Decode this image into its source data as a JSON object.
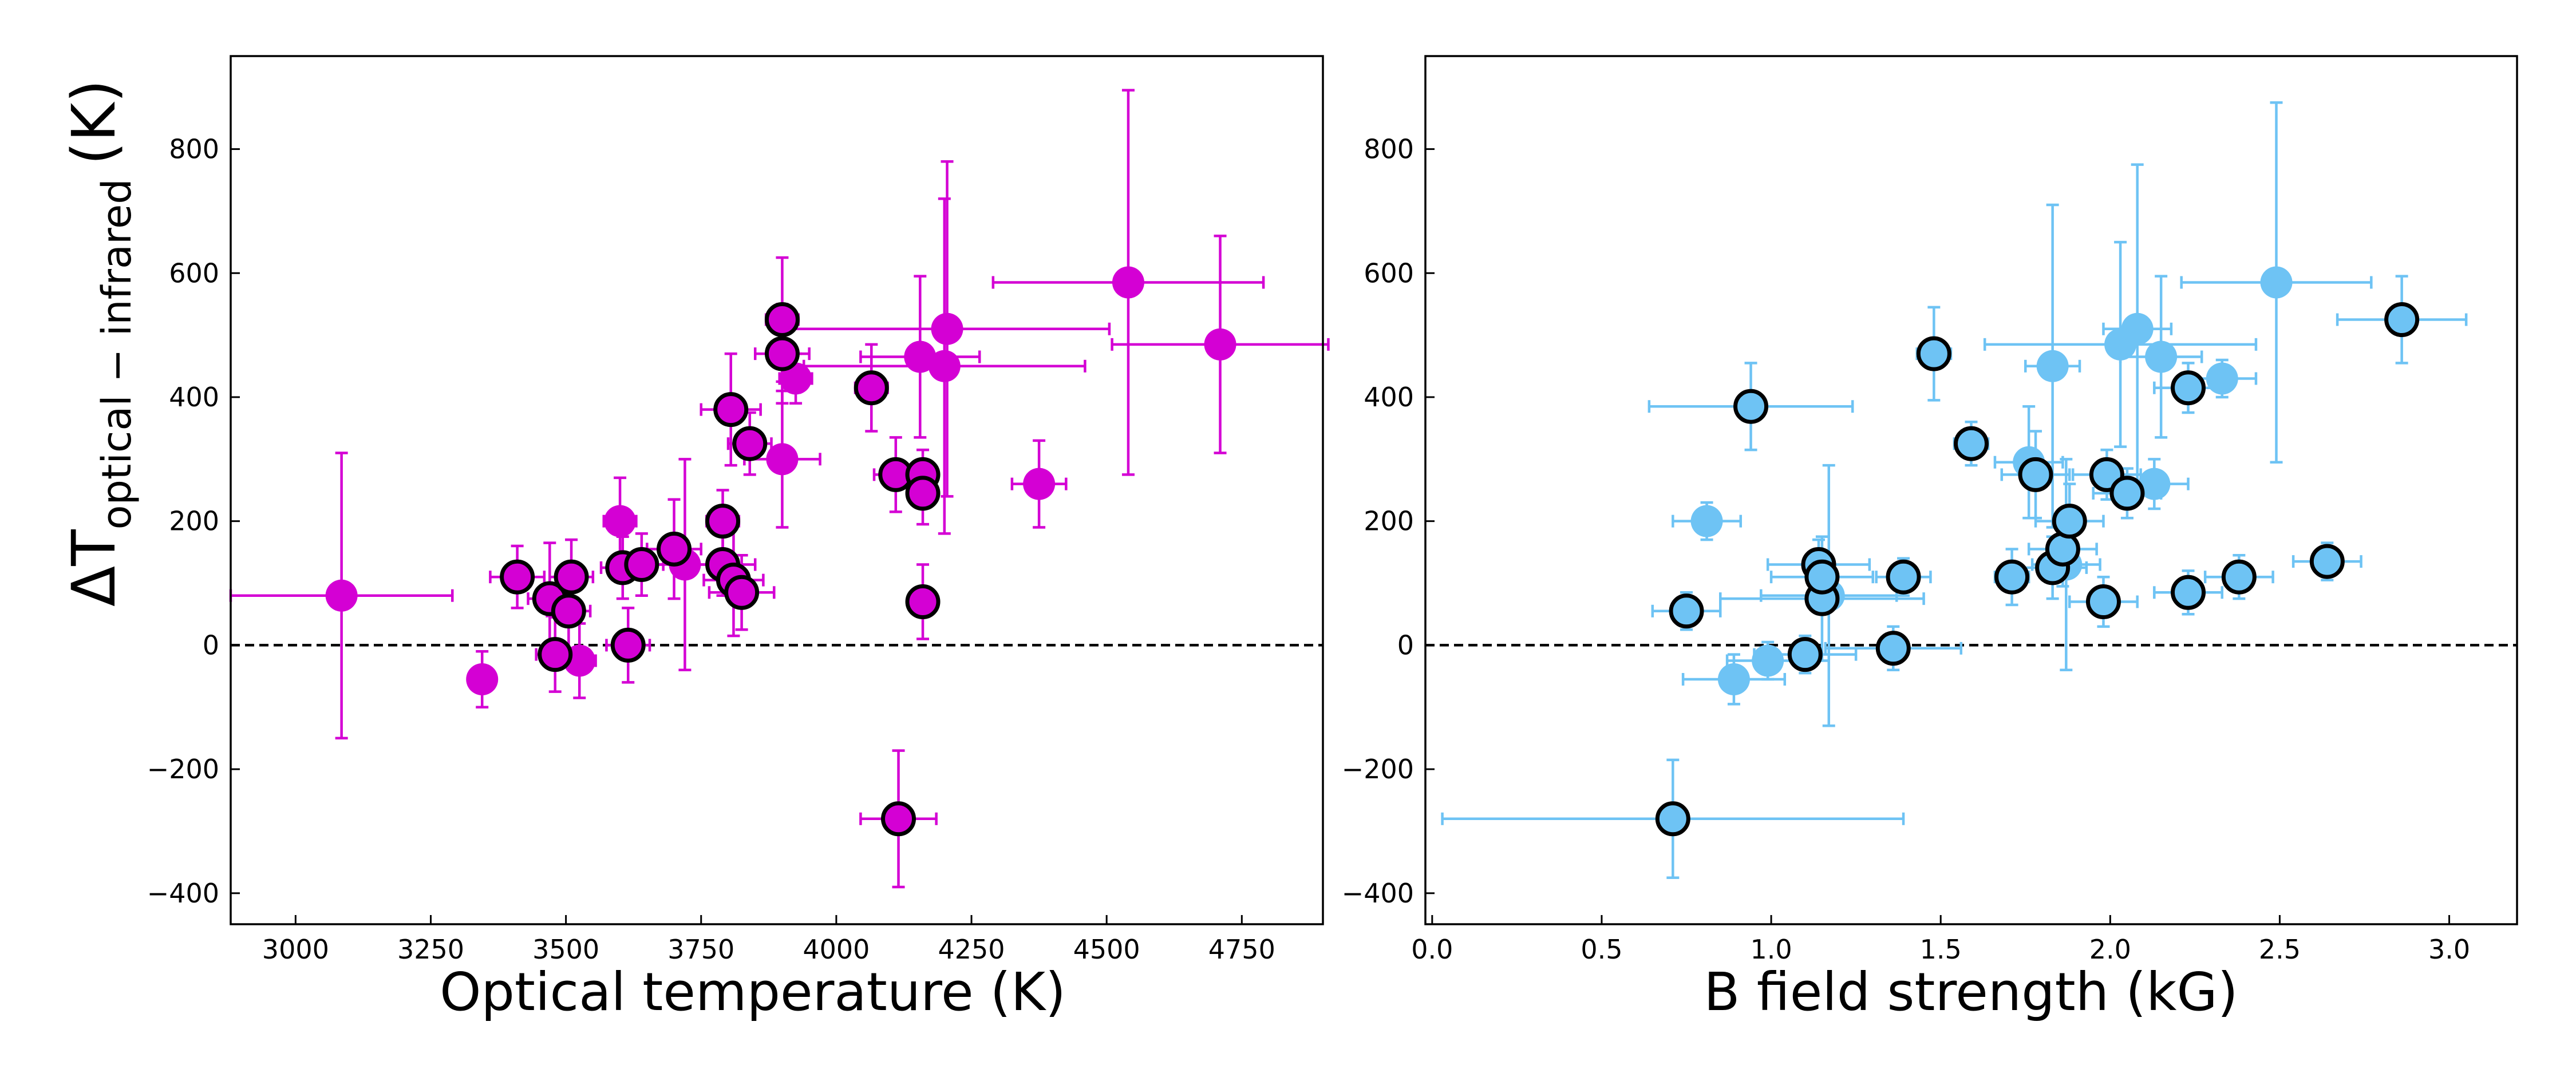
{
  "chart_data": [
    {
      "type": "scatter",
      "xlabel": "Optical temperature (K)",
      "ylabel_main": "ΔT",
      "ylabel_sub": "optical − infrared",
      "ylabel_unit": "(K)",
      "xlim": [
        2880,
        4900
      ],
      "ylim": [
        -450,
        950
      ],
      "xticks": [
        3000,
        3250,
        3500,
        3750,
        4000,
        4250,
        4500,
        4750
      ],
      "yticks": [
        -400,
        -200,
        0,
        200,
        400,
        600,
        800
      ],
      "reference_line_y": 0,
      "color": "#d400d4",
      "points": [
        {
          "x": 3085,
          "y": 80,
          "xerr": 205,
          "yerr": 230,
          "outlined": false
        },
        {
          "x": 3345,
          "y": -55,
          "xerr": 25,
          "yerr": 45,
          "outlined": false
        },
        {
          "x": 3410,
          "y": 110,
          "xerr": 50,
          "yerr": 50,
          "outlined": true
        },
        {
          "x": 3470,
          "y": 75,
          "xerr": 40,
          "yerr": 90,
          "outlined": true
        },
        {
          "x": 3480,
          "y": -15,
          "xerr": 35,
          "yerr": 60,
          "outlined": true
        },
        {
          "x": 3505,
          "y": 55,
          "xerr": 40,
          "yerr": 60,
          "outlined": true
        },
        {
          "x": 3510,
          "y": 110,
          "xerr": 40,
          "yerr": 60,
          "outlined": true
        },
        {
          "x": 3525,
          "y": -25,
          "xerr": 30,
          "yerr": 60,
          "outlined": false
        },
        {
          "x": 3600,
          "y": 200,
          "xerr": 30,
          "yerr": 70,
          "outlined": false
        },
        {
          "x": 3605,
          "y": 125,
          "xerr": 40,
          "yerr": 50,
          "outlined": true
        },
        {
          "x": 3615,
          "y": 0,
          "xerr": 40,
          "yerr": 60,
          "outlined": true
        },
        {
          "x": 3640,
          "y": 130,
          "xerr": 40,
          "yerr": 50,
          "outlined": true
        },
        {
          "x": 3700,
          "y": 155,
          "xerr": 50,
          "yerr": 80,
          "outlined": true
        },
        {
          "x": 3720,
          "y": 130,
          "xerr": 60,
          "yerr": 170,
          "outlined": false
        },
        {
          "x": 3790,
          "y": 200,
          "xerr": 30,
          "yerr": 50,
          "outlined": true
        },
        {
          "x": 3790,
          "y": 130,
          "xerr": 60,
          "yerr": 50,
          "outlined": true
        },
        {
          "x": 3805,
          "y": 380,
          "xerr": 55,
          "yerr": 90,
          "outlined": true
        },
        {
          "x": 3810,
          "y": 105,
          "xerr": 55,
          "yerr": 90,
          "outlined": true
        },
        {
          "x": 3825,
          "y": 85,
          "xerr": 60,
          "yerr": 60,
          "outlined": true
        },
        {
          "x": 3840,
          "y": 325,
          "xerr": 40,
          "yerr": 50,
          "outlined": true
        },
        {
          "x": 3900,
          "y": 525,
          "xerr": 30,
          "yerr": 100,
          "outlined": true
        },
        {
          "x": 3900,
          "y": 470,
          "xerr": 50,
          "yerr": 80,
          "outlined": true
        },
        {
          "x": 3900,
          "y": 300,
          "xerr": 70,
          "yerr": 110,
          "outlined": false
        },
        {
          "x": 3925,
          "y": 430,
          "xerr": 30,
          "yerr": 40,
          "outlined": false
        },
        {
          "x": 4065,
          "y": 415,
          "xerr": 30,
          "yerr": 70,
          "outlined": true
        },
        {
          "x": 4110,
          "y": 275,
          "xerr": 40,
          "yerr": 60,
          "outlined": true
        },
        {
          "x": 4115,
          "y": -280,
          "xerr": 70,
          "yerr": 110,
          "outlined": true
        },
        {
          "x": 4160,
          "y": 275,
          "xerr": 25,
          "yerr": 40,
          "outlined": true
        },
        {
          "x": 4160,
          "y": 245,
          "xerr": 25,
          "yerr": 50,
          "outlined": true
        },
        {
          "x": 4160,
          "y": 70,
          "xerr": 25,
          "yerr": 60,
          "outlined": true
        },
        {
          "x": 4155,
          "y": 465,
          "xerr": 110,
          "yerr": 130,
          "outlined": false
        },
        {
          "x": 4200,
          "y": 450,
          "xerr": 260,
          "yerr": 270,
          "outlined": false
        },
        {
          "x": 4205,
          "y": 510,
          "xerr": 300,
          "yerr": 270,
          "outlined": false
        },
        {
          "x": 4375,
          "y": 260,
          "xerr": 50,
          "yerr": 70,
          "outlined": false
        },
        {
          "x": 4540,
          "y": 585,
          "xerr": 250,
          "yerr": 310,
          "outlined": false
        },
        {
          "x": 4710,
          "y": 485,
          "xerr": 200,
          "yerr": 175,
          "outlined": false
        }
      ]
    },
    {
      "type": "scatter",
      "xlabel": "B field strength (kG)",
      "xlim": [
        -0.02,
        3.2
      ],
      "ylim": [
        -450,
        950
      ],
      "xticks": [
        "0.0",
        "0.5",
        "1.0",
        "1.5",
        "2.0",
        "2.5",
        "3.0"
      ],
      "yticks": [
        -400,
        -200,
        0,
        200,
        400,
        600,
        800
      ],
      "reference_line_y": 0,
      "color": "#6ec3f4",
      "points": [
        {
          "x": 0.71,
          "y": -280,
          "xerr": 0.68,
          "yerr": 95,
          "outlined": true
        },
        {
          "x": 0.75,
          "y": 55,
          "xerr": 0.1,
          "yerr": 30,
          "outlined": true
        },
        {
          "x": 0.81,
          "y": 200,
          "xerr": 0.1,
          "yerr": 30,
          "outlined": false
        },
        {
          "x": 0.89,
          "y": -55,
          "xerr": 0.15,
          "yerr": 40,
          "outlined": false
        },
        {
          "x": 0.94,
          "y": 385,
          "xerr": 0.3,
          "yerr": 70,
          "outlined": true
        },
        {
          "x": 0.99,
          "y": -25,
          "xerr": 0.12,
          "yerr": 30,
          "outlined": false
        },
        {
          "x": 1.1,
          "y": -15,
          "xerr": 0.15,
          "yerr": 30,
          "outlined": true
        },
        {
          "x": 1.14,
          "y": 130,
          "xerr": 0.15,
          "yerr": 40,
          "outlined": true
        },
        {
          "x": 1.15,
          "y": 75,
          "xerr": 0.3,
          "yerr": 100,
          "outlined": true
        },
        {
          "x": 1.15,
          "y": 110,
          "xerr": 0.15,
          "yerr": 35,
          "outlined": true
        },
        {
          "x": 1.17,
          "y": 80,
          "xerr": 0.2,
          "yerr": 210,
          "outlined": false
        },
        {
          "x": 1.36,
          "y": -5,
          "xerr": 0.2,
          "yerr": 35,
          "outlined": true
        },
        {
          "x": 1.39,
          "y": 110,
          "xerr": 0.08,
          "yerr": 30,
          "outlined": true
        },
        {
          "x": 1.48,
          "y": 470,
          "xerr": 0.05,
          "yerr": 75,
          "outlined": true
        },
        {
          "x": 1.59,
          "y": 325,
          "xerr": 0.05,
          "yerr": 35,
          "outlined": true
        },
        {
          "x": 1.71,
          "y": 110,
          "xerr": 0.05,
          "yerr": 45,
          "outlined": true
        },
        {
          "x": 1.76,
          "y": 295,
          "xerr": 0.1,
          "yerr": 90,
          "outlined": false
        },
        {
          "x": 1.78,
          "y": 275,
          "xerr": 0.1,
          "yerr": 70,
          "outlined": true
        },
        {
          "x": 1.83,
          "y": 125,
          "xerr": 0.1,
          "yerr": 50,
          "outlined": true
        },
        {
          "x": 1.83,
          "y": 450,
          "xerr": 0.08,
          "yerr": 260,
          "outlined": false
        },
        {
          "x": 1.86,
          "y": 155,
          "xerr": 0.1,
          "yerr": 60,
          "outlined": true
        },
        {
          "x": 1.87,
          "y": 130,
          "xerr": 0.1,
          "yerr": 170,
          "outlined": false
        },
        {
          "x": 1.88,
          "y": 200,
          "xerr": 0.1,
          "yerr": 60,
          "outlined": true
        },
        {
          "x": 1.98,
          "y": 70,
          "xerr": 0.1,
          "yerr": 40,
          "outlined": true
        },
        {
          "x": 1.99,
          "y": 275,
          "xerr": 0.1,
          "yerr": 40,
          "outlined": true
        },
        {
          "x": 2.03,
          "y": 485,
          "xerr": 0.4,
          "yerr": 165,
          "outlined": false
        },
        {
          "x": 2.05,
          "y": 245,
          "xerr": 0.1,
          "yerr": 40,
          "outlined": true
        },
        {
          "x": 2.08,
          "y": 510,
          "xerr": 0.1,
          "yerr": 265,
          "outlined": false
        },
        {
          "x": 2.13,
          "y": 260,
          "xerr": 0.1,
          "yerr": 40,
          "outlined": false
        },
        {
          "x": 2.15,
          "y": 465,
          "xerr": 0.12,
          "yerr": 130,
          "outlined": false
        },
        {
          "x": 2.23,
          "y": 415,
          "xerr": 0.1,
          "yerr": 40,
          "outlined": true
        },
        {
          "x": 2.23,
          "y": 85,
          "xerr": 0.1,
          "yerr": 35,
          "outlined": true
        },
        {
          "x": 2.33,
          "y": 430,
          "xerr": 0.1,
          "yerr": 30,
          "outlined": false
        },
        {
          "x": 2.38,
          "y": 110,
          "xerr": 0.1,
          "yerr": 35,
          "outlined": true
        },
        {
          "x": 2.49,
          "y": 585,
          "xerr": 0.28,
          "yerr": 290,
          "outlined": false
        },
        {
          "x": 2.64,
          "y": 135,
          "xerr": 0.1,
          "yerr": 30,
          "outlined": true
        },
        {
          "x": 2.86,
          "y": 525,
          "xerr": 0.19,
          "yerr": 70,
          "outlined": true
        }
      ]
    }
  ]
}
